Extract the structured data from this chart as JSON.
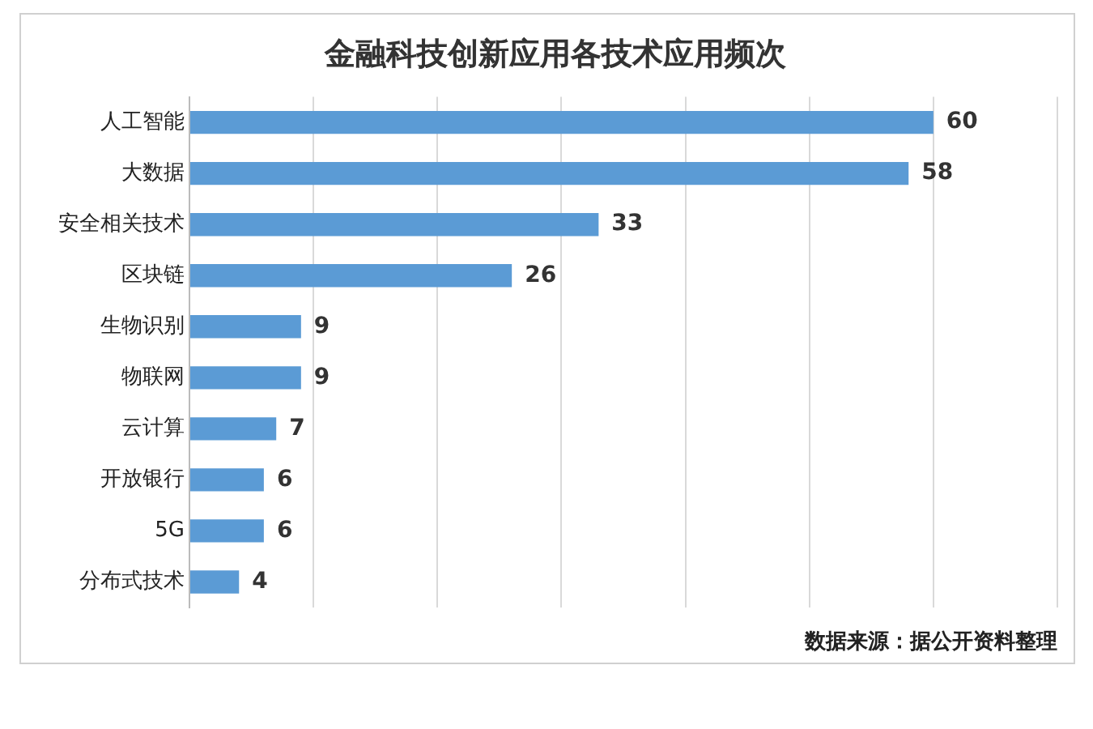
{
  "chart_data": {
    "type": "bar",
    "orientation": "horizontal",
    "title": "金融科技创新应用各技术应用频次",
    "categories": [
      "人工智能",
      "大数据",
      "安全相关技术",
      "区块链",
      "生物识别",
      "物联网",
      "云计算",
      "开放银行",
      "5G",
      "分布式技术"
    ],
    "values": [
      60,
      58,
      33,
      26,
      9,
      9,
      7,
      6,
      6,
      4
    ],
    "color": "#5b9bd5",
    "xlim": [
      0,
      70
    ],
    "xticks": [
      {
        "value": 0,
        "label": null
      },
      {
        "value": 10,
        "label": null
      },
      {
        "value": 20,
        "label": null
      },
      {
        "value": 30,
        "label": null
      },
      {
        "value": 40,
        "label": null
      },
      {
        "value": 50,
        "label": null
      },
      {
        "value": 60,
        "label": null
      },
      {
        "value": 70,
        "label": null
      }
    ],
    "grid": "x",
    "tick_labels": "y",
    "data_labels": true,
    "legend": false,
    "annotations": [
      "数据来源：据公开资料整理"
    ]
  }
}
